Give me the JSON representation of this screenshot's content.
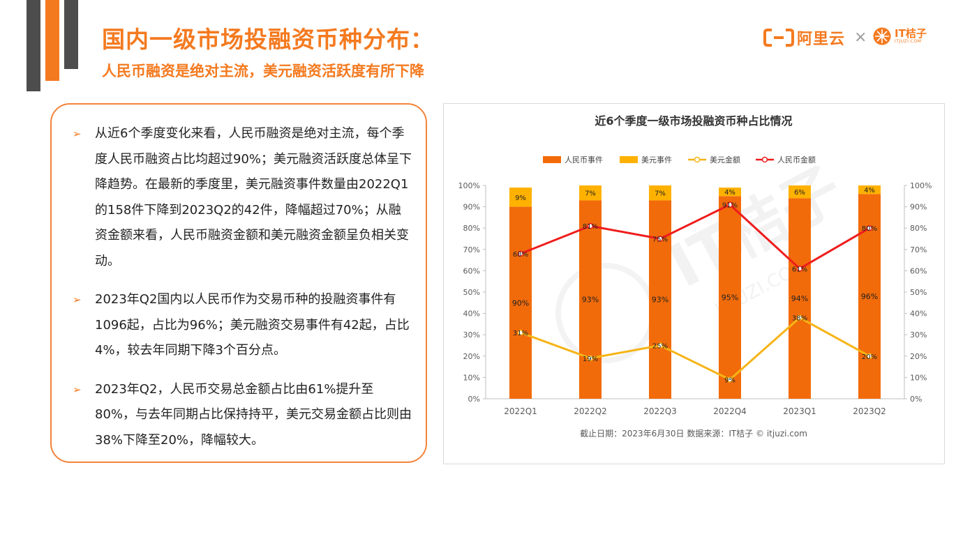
{
  "page": {
    "title": "国内一级市场投融资币种分布：",
    "subtitle": "人民币融资是绝对主流，美元融资活跃度有所下降"
  },
  "logos": {
    "aliyun_text": "阿里云",
    "separator": "×",
    "itjuzi_text": "IT桔子",
    "itjuzi_sub": "ITJUZI.COM"
  },
  "colors": {
    "accent": "#f47a20",
    "rmb_events": "#f26b0a",
    "usd_events": "#ffb100",
    "usd_amount_line": "#f6b416",
    "rmb_amount_line": "#ef1c1c",
    "dark_bar": "#4d4d4d"
  },
  "bullets": [
    "从近6个季度变化来看，人民币融资是绝对主流，每个季度人民币融资占比均超过90%；美元融资活跃度总体呈下降趋势。在最新的季度里，美元融资事件数量由2022Q1的158件下降到2023Q2的42件，降幅超过70%；从融资金额来看，人民币融资金额和美元融资金额呈负相关变动。",
    "2023年Q2国内以人民币作为交易币种的投融资事件有1096起，占比为96%；美元融资交易事件有42起，占比4%，较去年同期下降3个百分点。",
    "2023年Q2，人民币交易总金额占比由61%提升至80%，与去年同期占比保持持平，美元交易金额占比则由38%下降至20%，降幅较大。"
  ],
  "chart_data": {
    "type": "bar",
    "title": "近6个季度一级市场投融资币种占比情况",
    "categories": [
      "2022Q1",
      "2022Q2",
      "2022Q3",
      "2022Q4",
      "2023Q1",
      "2023Q2"
    ],
    "series": [
      {
        "name": "人民币事件",
        "kind": "stacked-bar",
        "values": [
          90,
          93,
          93,
          95,
          94,
          96
        ],
        "labels": [
          "90%",
          "93%",
          "93%",
          "95%",
          "94%",
          "96%"
        ]
      },
      {
        "name": "美元事件",
        "kind": "stacked-bar",
        "values": [
          9,
          7,
          7,
          4,
          6,
          4
        ],
        "labels": [
          "9%",
          "7%",
          "7%",
          "4%",
          "6%",
          "4%"
        ]
      },
      {
        "name": "美元金额",
        "kind": "line",
        "values": [
          31,
          19,
          25,
          9,
          38,
          20
        ],
        "labels": [
          "31%",
          "19%",
          "25%",
          "9%",
          "38%",
          "20%"
        ]
      },
      {
        "name": "人民币金额",
        "kind": "line",
        "values": [
          68,
          81,
          75,
          91,
          61,
          80
        ],
        "labels": [
          "68%",
          "81%",
          "75%",
          "91%",
          "61%",
          "80%"
        ]
      }
    ],
    "ylim": [
      0,
      100
    ],
    "yticks": [
      "0%",
      "10%",
      "20%",
      "30%",
      "40%",
      "50%",
      "60%",
      "70%",
      "80%",
      "90%",
      "100%"
    ],
    "legend_position": "top",
    "source_note": "截止日期：2023年6月30日    数据来源：IT桔子 © itjuzi.com",
    "watermark": "IT桔子 ITJUZI.COM"
  }
}
